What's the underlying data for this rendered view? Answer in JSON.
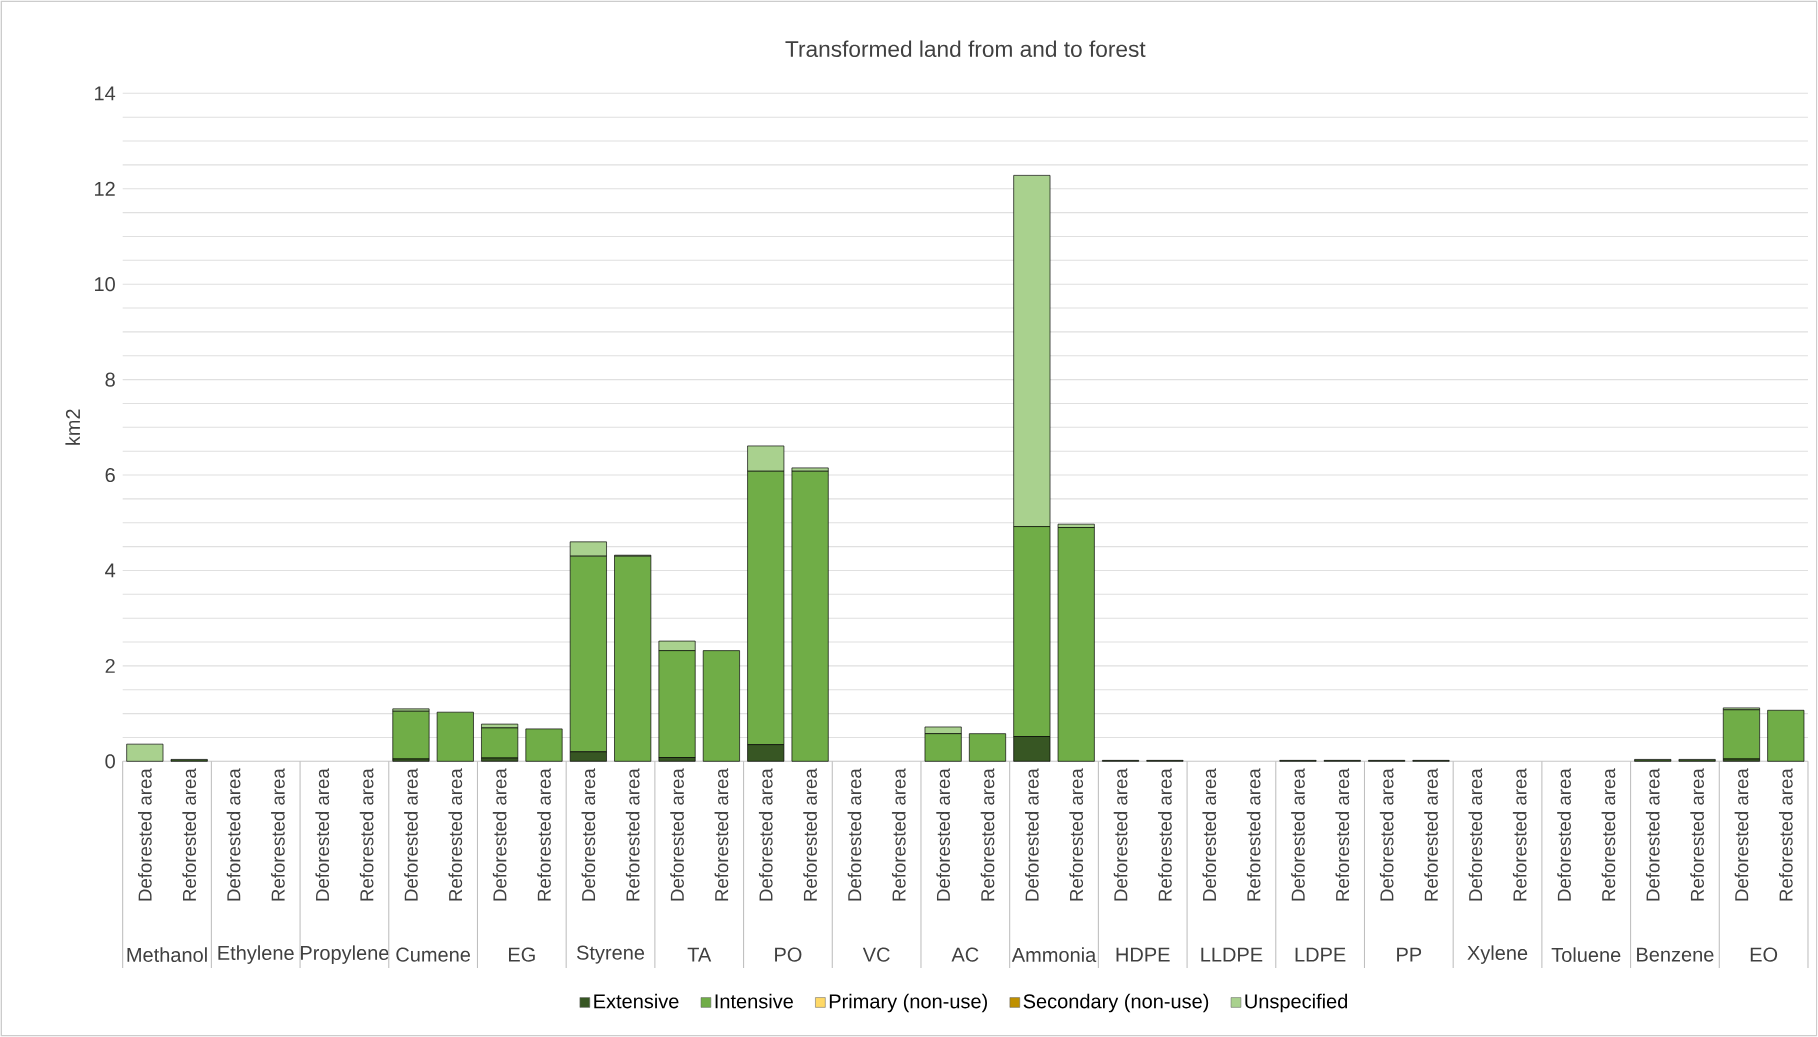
{
  "chart_data": {
    "type": "bar",
    "stacked": true,
    "title": "Transformed land from and to forest",
    "ylabel": "km2",
    "categories": [
      "Deforested area",
      "Reforested area",
      "Deforested area",
      "Reforested area",
      "Deforested area",
      "Reforested area",
      "Deforested area",
      "Reforested area",
      "Deforested area",
      "Reforested area",
      "Deforested area",
      "Reforested area",
      "Deforested area",
      "Reforested area",
      "Deforested area",
      "Reforested area",
      "Deforested area",
      "Reforested area",
      "Deforested area",
      "Reforested area",
      "Deforested area",
      "Reforested area",
      "Deforested area",
      "Reforested area",
      "Deforested area",
      "Reforested area",
      "Deforested area",
      "Reforested area",
      "Deforested area",
      "Reforested area",
      "Deforested area",
      "Reforested area",
      "Deforested area",
      "Reforested area",
      "Deforested area",
      "Reforested area",
      "Deforested area",
      "Reforested area"
    ],
    "annotations": [
      "Methanol",
      "Ethylene",
      "Propylene",
      "Cumene",
      "EG",
      "Styrene",
      "TA",
      "PO",
      "VC",
      "AC",
      "Ammonia",
      "HDPE",
      "LLDPE",
      "LDPE",
      "PP",
      "Xylene",
      "Toluene",
      "Benzene",
      "EO"
    ],
    "series": [
      {
        "name": "Extensive",
        "color": "#375623",
        "values": [
          0,
          0.04,
          0,
          0,
          0,
          0,
          0.05,
          0,
          0.07,
          0,
          0.2,
          0,
          0.08,
          0,
          0.35,
          0,
          0,
          0,
          0,
          0,
          0.52,
          0,
          0.02,
          0.02,
          0,
          0,
          0.02,
          0.02,
          0.02,
          0.02,
          0,
          0,
          0,
          0,
          0.04,
          0.04,
          0.05,
          0
        ]
      },
      {
        "name": "Intensive",
        "color": "#70ad47",
        "values": [
          0,
          0,
          0,
          0,
          0,
          0,
          1.0,
          1.03,
          0.63,
          0.68,
          4.1,
          4.3,
          2.24,
          2.32,
          5.73,
          6.08,
          0,
          0,
          0.58,
          0.58,
          4.4,
          4.9,
          0,
          0,
          0,
          0,
          0,
          0,
          0,
          0,
          0,
          0,
          0,
          0,
          0,
          0,
          1.03,
          1.07
        ]
      },
      {
        "name": "Primary (non-use)",
        "color": "#ffd966",
        "values": [
          0,
          0,
          0,
          0,
          0,
          0,
          0,
          0,
          0,
          0,
          0,
          0,
          0,
          0,
          0,
          0,
          0,
          0,
          0,
          0,
          0,
          0,
          0,
          0,
          0,
          0,
          0,
          0,
          0,
          0,
          0,
          0,
          0,
          0,
          0,
          0,
          0,
          0
        ]
      },
      {
        "name": "Secondary (non-use)",
        "color": "#bf9000",
        "values": [
          0,
          0,
          0,
          0,
          0,
          0,
          0,
          0,
          0,
          0,
          0,
          0,
          0,
          0,
          0,
          0,
          0,
          0,
          0,
          0,
          0,
          0,
          0,
          0,
          0,
          0,
          0,
          0,
          0,
          0,
          0,
          0,
          0,
          0,
          0,
          0,
          0,
          0
        ]
      },
      {
        "name": "Unspecified",
        "color": "#a9d18e",
        "values": [
          0.36,
          0,
          0,
          0,
          0,
          0,
          0.05,
          0,
          0.08,
          0,
          0.3,
          0.02,
          0.2,
          0,
          0.53,
          0.07,
          0,
          0,
          0.14,
          0,
          7.36,
          0.07,
          0,
          0,
          0,
          0,
          0,
          0,
          0,
          0,
          0,
          0,
          0,
          0,
          0,
          0,
          0.04,
          0
        ]
      }
    ],
    "ylim": [
      0,
      14
    ],
    "yticks": [
      0,
      {
        "value": 0.5,
        "label": null
      },
      2,
      {
        "value": 1,
        "label": null
      },
      {
        "value": 1.5,
        "label": null
      },
      {
        "value": 2.5,
        "label": null
      },
      {
        "value": 3,
        "label": null
      },
      {
        "value": 3.5,
        "label": null
      },
      4,
      {
        "value": 4.5,
        "label": null
      },
      {
        "value": 5,
        "label": null
      },
      {
        "value": 5.5,
        "label": null
      },
      6,
      {
        "value": 6.5,
        "label": null
      },
      {
        "value": 7,
        "label": null
      },
      {
        "value": 7.5,
        "label": null
      },
      8,
      {
        "value": 8.5,
        "label": null
      },
      {
        "value": 9,
        "label": null
      },
      {
        "value": 9.5,
        "label": null
      },
      10,
      {
        "value": 10.5,
        "label": null
      },
      {
        "value": 11,
        "label": null
      },
      {
        "value": 11.5,
        "label": null
      },
      12,
      {
        "value": 12.5,
        "label": null
      },
      {
        "value": 13,
        "label": null
      },
      {
        "value": 13.5,
        "label": null
      },
      14
    ],
    "grid": "y",
    "legend": "bottom"
  }
}
